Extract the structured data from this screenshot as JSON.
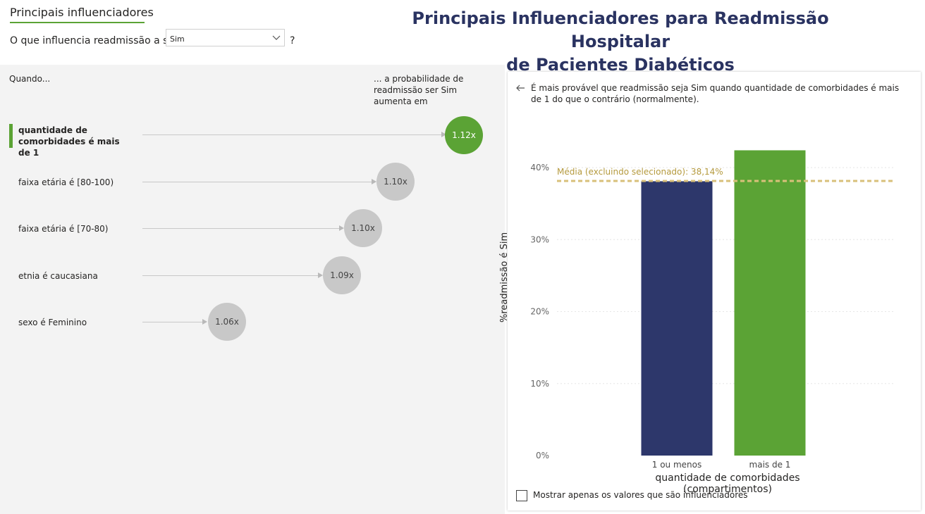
{
  "tabs": {
    "active": "Principais influenciadores"
  },
  "question": {
    "prefix": "O que influencia readmissão a ser",
    "selected": "Sim",
    "suffix": "?"
  },
  "title": {
    "line1": "Principais Influenciadores para Readmissão Hospitalar",
    "line2": "de Pacientes Diabéticos"
  },
  "left_panel": {
    "when_label": "Quando...",
    "prob_label": "... a probabilidade de readmissão ser Sim aumenta em",
    "influencers": [
      {
        "label": "quantidade de comorbidades é mais de 1",
        "value": "1.12x",
        "multiplier": 1.12,
        "selected": true
      },
      {
        "label": "faixa etária é [80-100)",
        "value": "1.10x",
        "multiplier": 1.1,
        "selected": false
      },
      {
        "label": "faixa etária é [70-80)",
        "value": "1.10x",
        "multiplier": 1.1,
        "selected": false
      },
      {
        "label": "etnia é caucasiana",
        "value": "1.09x",
        "multiplier": 1.09,
        "selected": false
      },
      {
        "label": "sexo é Feminino",
        "value": "1.06x",
        "multiplier": 1.06,
        "selected": false
      }
    ]
  },
  "detail": {
    "explanation": "É mais provável que readmissão seja Sim quando quantidade de comorbidades é mais de 1 do que o contrário (normalmente).",
    "checkbox_label": "Mostrar apenas os valores que são influenciadores",
    "checkbox_checked": false
  },
  "colors": {
    "accent": "#5ba335",
    "bar_other": "#2d376b",
    "avg_line": "#d8c07a",
    "title": "#2a3361"
  },
  "chart_data": {
    "type": "bar",
    "categories": [
      "1 ou menos",
      "mais de 1"
    ],
    "values": [
      38.1,
      42.4
    ],
    "xlabel": "quantidade de comorbidades (compartimentos)",
    "ylabel": "%readmissão é Sim",
    "ylim": [
      0,
      40
    ],
    "yticks": [
      "0%",
      "10%",
      "20%",
      "30%",
      "40%"
    ],
    "average": {
      "label": "Média (excluindo selecionado): 38,14%",
      "value": 38.14
    },
    "grid": true
  }
}
